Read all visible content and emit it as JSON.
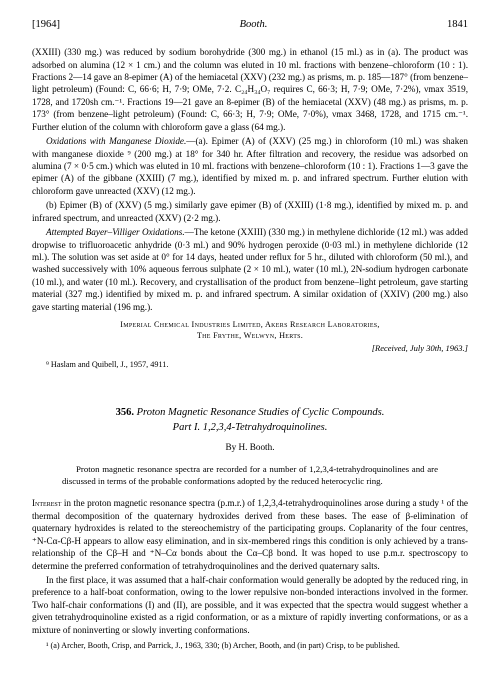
{
  "header": {
    "year": "[1964]",
    "author": "Booth.",
    "page": "1841"
  },
  "body": {
    "p1": "(XXIII) (330 mg.) was reduced by sodium borohydride (300 mg.) in ethanol (15 ml.) as in (a). The product was adsorbed on alumina (12 × 1 cm.) and the column was eluted in 10 ml. fractions with benzene–chloroform (10 : 1). Fractions 2—14 gave an 8-epimer (A) of the hemiacetal (XXV) (232 mg.) as prisms, m. p. 185—187° (from benzene–light petroleum) (Found: C, 66·6; H, 7·9; OMe, 7·2. C₂₄H₃₄O₇ requires C, 66·3; H, 7·9; OMe, 7·2%), νmax 3519, 1728, and 1720sh cm.⁻¹. Fractions 19—21 gave an 8-epimer (B) of the hemiacetal (XXV) (48 mg.) as prisms, m. p. 173° (from benzene–light petroleum) (Found: C, 66·3; H, 7·9; OMe, 7·0%), νmax 3468, 1728, and 1715 cm.⁻¹. Further elution of the column with chloroform gave a glass (64 mg.).",
    "p2_title": "Oxidations with Manganese Dioxide.",
    "p2": "—(a). Epimer (A) of (XXV) (25 mg.) in chloroform (10 ml.) was shaken with manganese dioxide ⁹ (200 mg.) at 18° for 340 hr. After filtration and recovery, the residue was adsorbed on alumina (7 × 0·5 cm.) which was eluted in 10 ml. fractions with benzene–chloroform (10 : 1). Fractions 1—3 gave the epimer (A) of the gibbane (XXIII) (7 mg.), identified by mixed m. p. and infrared spectrum. Further elution with chloroform gave unreacted (XXV) (12 mg.).",
    "p3": "(b) Epimer (B) of (XXV) (5 mg.) similarly gave epimer (B) of (XXIII) (1·8 mg.), identified by mixed m. p. and infrared spectrum, and unreacted (XXV) (2·2 mg.).",
    "p4_title": "Attempted Bayer–Villiger Oxidations.",
    "p4": "—The ketone (XXIII) (330 mg.) in methylene dichloride (12 ml.) was added dropwise to trifluoroacetic anhydride (0·3 ml.) and 90% hydrogen peroxide (0·03 ml.) in methylene dichloride (12 ml.). The solution was set aside at 0° for 14 days, heated under reflux for 5 hr., diluted with chloroform (50 ml.), and washed successively with 10% aqueous ferrous sulphate (2 × 10 ml.), water (10 ml.), 2N-sodium hydrogen carbonate (10 ml.), and water (10 ml.). Recovery, and crystallisation of the product from benzene–light petroleum, gave starting material (327 mg.) identified by mixed m. p. and infrared spectrum. A similar oxidation of (XXIV) (200 mg.) also gave starting material (196 mg.).",
    "affil1": "Imperial Chemical Industries Limited, Akers Research Laboratories,",
    "affil2": "The Frythe, Welwyn, Herts.",
    "received": "[Received, July 30th, 1963.]",
    "footnote": "⁹ Haslam and Quibell, J., 1957, 4911."
  },
  "article": {
    "num": "356.",
    "title_line1": "Proton Magnetic Resonance Studies of Cyclic Compounds.",
    "title_line2": "Part I.   1,2,3,4-Tetrahydroquinolines.",
    "byline": "By H. Booth.",
    "abstract": "Proton magnetic resonance spectra are recorded for a number of 1,2,3,4-tetrahydroquinolines and are discussed in terms of the probable conformations adopted by the reduced heterocyclic ring.",
    "p1_lead": "Interest",
    "p1": " in the proton magnetic resonance spectra (p.m.r.) of 1,2,3,4-tetrahydroquinolines arose during a study ¹ of the thermal decomposition of the quaternary hydroxides derived from these bases. The ease of β-elimination of quaternary hydroxides is related to the stereochemistry of the participating groups. Coplanarity of the four centres, ⁺N-Cα-Cβ-H appears to allow easy elimination, and in six-membered rings this condition is only achieved by a trans-relationship of the Cβ–H and ⁺N–Cα bonds about the Cα–Cβ bond. It was hoped to use p.m.r. spectroscopy to determine the preferred conformation of tetrahydroquinolines and the derived quaternary salts.",
    "p2": "In the first place, it was assumed that a half-chair conformation would generally be adopted by the reduced ring, in preference to a half-boat conformation, owing to the lower repulsive non-bonded interactions involved in the former. Two half-chair conformations (I) and (II), are possible, and it was expected that the spectra would suggest whether a given tetrahydroquinoline existed as a rigid conformation, or as a mixture of rapidly inverting conformations, or as a mixture of noninverting or slowly inverting conformations.",
    "footnote": "¹ (a) Archer, Booth, Crisp, and Parrick, J., 1963, 330; (b) Archer, Booth, and (in part) Crisp, to be published."
  }
}
